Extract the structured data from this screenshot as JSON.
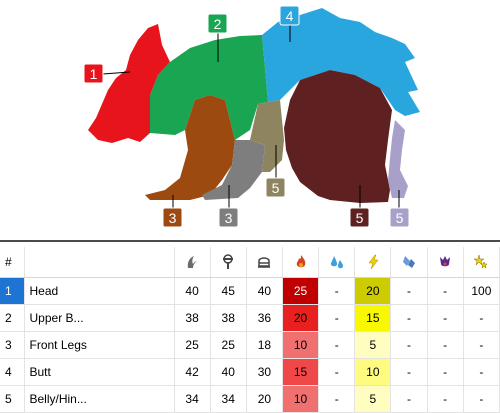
{
  "diagram": {
    "labels": [
      {
        "id": "head",
        "text": "1",
        "color": "#e8141c"
      },
      {
        "id": "upper-body",
        "text": "2",
        "color": "#1aa552"
      },
      {
        "id": "back",
        "text": "4",
        "color": "#2aa6df"
      },
      {
        "id": "front-leg-left",
        "text": "3",
        "color": "#9c4a10"
      },
      {
        "id": "front-leg-right",
        "text": "3",
        "color": "#7e7e7e"
      },
      {
        "id": "belly-mid",
        "text": "5",
        "color": "#8e8460"
      },
      {
        "id": "belly-hind",
        "text": "5",
        "color": "#5e2020"
      },
      {
        "id": "hind-foot",
        "text": "5",
        "color": "#a8a0c8"
      }
    ]
  },
  "table": {
    "headers": {
      "num": "#",
      "icons": [
        "claw-icon",
        "mace-icon",
        "helmet-icon",
        "fire-icon",
        "water-icon",
        "thunder-icon",
        "ice-icon",
        "dragon-icon",
        "stun-icon"
      ]
    },
    "rows": [
      {
        "num": "1",
        "name": "Head",
        "v": [
          "40",
          "45",
          "40",
          "25",
          "-",
          "20",
          "-",
          "-",
          "100"
        ],
        "selected": true
      },
      {
        "num": "2",
        "name": "Upper B...",
        "v": [
          "38",
          "38",
          "36",
          "20",
          "-",
          "15",
          "-",
          "-",
          "-"
        ],
        "selected": false
      },
      {
        "num": "3",
        "name": "Front Legs",
        "v": [
          "25",
          "25",
          "18",
          "10",
          "-",
          "5",
          "-",
          "-",
          "-"
        ],
        "selected": false
      },
      {
        "num": "4",
        "name": "Butt",
        "v": [
          "42",
          "40",
          "30",
          "15",
          "-",
          "10",
          "-",
          "-",
          "-"
        ],
        "selected": false
      },
      {
        "num": "5",
        "name": "Belly/Hin...",
        "v": [
          "34",
          "34",
          "20",
          "10",
          "-",
          "5",
          "-",
          "-",
          "-"
        ],
        "selected": false
      }
    ]
  },
  "colors": {
    "fire": [
      "#c00000",
      "#e82020",
      "#f07070",
      "#f04848",
      "#f07070"
    ],
    "thunder": [
      "#cccc00",
      "#f8f800",
      "#fffdc0",
      "#fffa80",
      "#fffdc0"
    ],
    "selection": "#1e74d3"
  }
}
